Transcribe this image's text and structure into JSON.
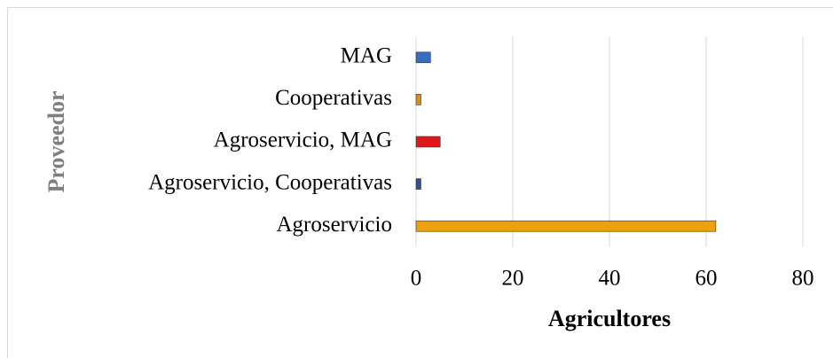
{
  "chart_data": {
    "type": "barh",
    "categories": [
      "MAG",
      "Cooperativas",
      "Agroservicio, MAG",
      "Agroservicio, Cooperativas",
      "Agroservicio"
    ],
    "values": [
      3,
      1,
      5,
      1,
      62
    ],
    "colors": [
      "#3b6cc0",
      "#d98e14",
      "#e01818",
      "#2f4f8f",
      "#eea010"
    ],
    "xlabel": "Agricultores",
    "ylabel": "Proveedor",
    "xlim": [
      0,
      80
    ],
    "xticks": [
      0,
      20,
      40,
      60,
      80
    ],
    "grid": true
  }
}
